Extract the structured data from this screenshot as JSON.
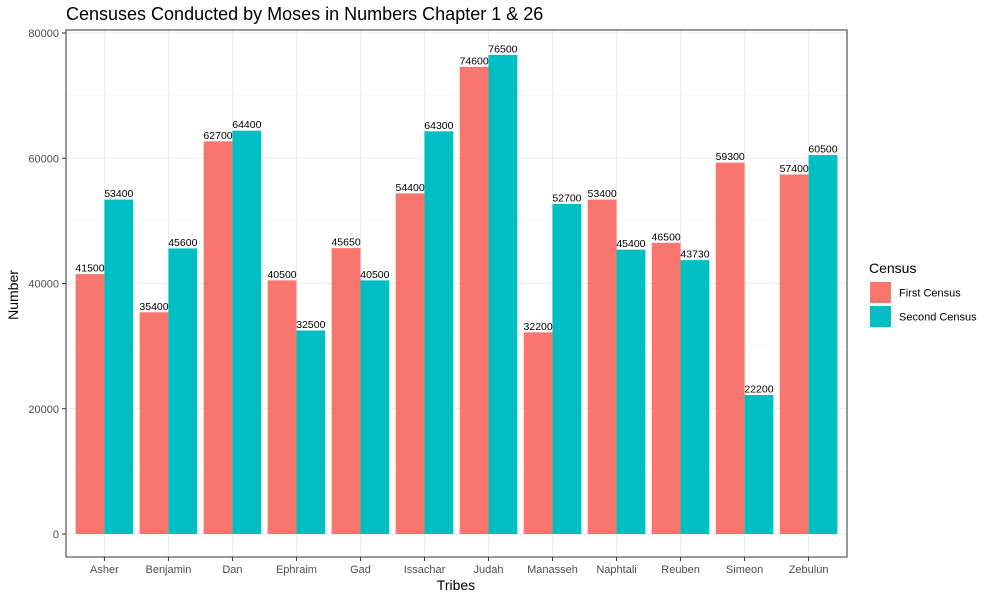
{
  "chart_data": {
    "type": "bar",
    "title": "Censuses Conducted by Moses in Numbers Chapter 1 & 26",
    "xlabel": "Tribes",
    "ylabel": "Number",
    "categories": [
      "Asher",
      "Benjamin",
      "Dan",
      "Ephraim",
      "Gad",
      "Issachar",
      "Judah",
      "Manasseh",
      "Naphtali",
      "Reuben",
      "Simeon",
      "Zebulun"
    ],
    "series": [
      {
        "name": "First Census",
        "color": "#F8766D",
        "values": [
          41500,
          35400,
          62700,
          40500,
          45650,
          54400,
          74600,
          32200,
          53400,
          46500,
          59300,
          57400
        ]
      },
      {
        "name": "Second Census",
        "color": "#00BFC4",
        "values": [
          53400,
          45600,
          64400,
          32500,
          40500,
          64300,
          76500,
          52700,
          45400,
          43730,
          22200,
          60500
        ]
      }
    ],
    "ylim": [
      0,
      80000
    ],
    "yticks": [
      0,
      20000,
      40000,
      60000,
      80000
    ],
    "legend": {
      "title": "Census",
      "position": "right"
    },
    "grid": true,
    "theme": "bw"
  }
}
